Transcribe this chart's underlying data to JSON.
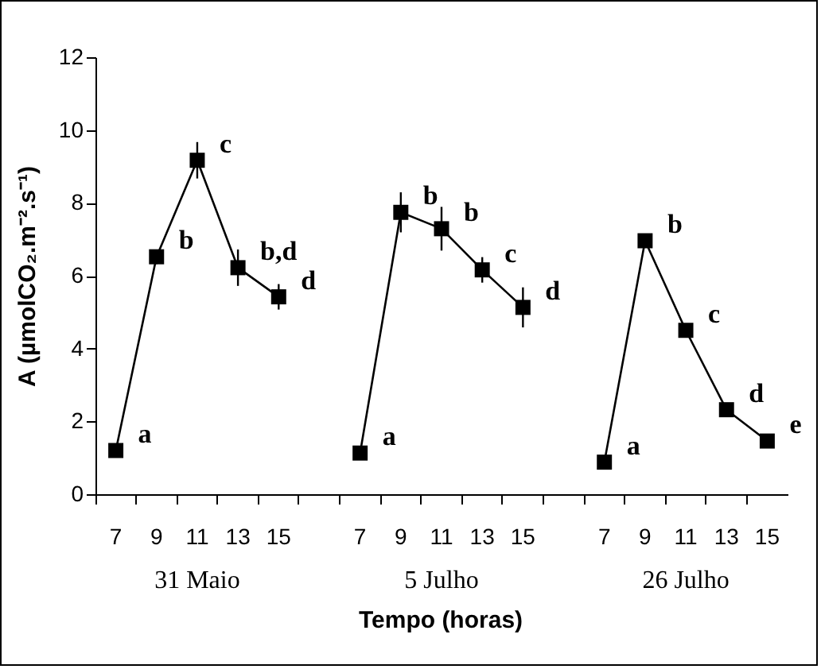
{
  "chart_data": {
    "type": "line",
    "ylabel": "A (µmolCO₂.m⁻².s⁻¹)",
    "xlabel": "Tempo (horas)",
    "categories": [
      "7",
      "9",
      "11",
      "13",
      "15",
      null,
      "7",
      "9",
      "11",
      "13",
      "15",
      null,
      "7",
      "9",
      "11",
      "13",
      "15"
    ],
    "series": [
      {
        "color": "#000000",
        "values": [
          1.2,
          6.52,
          9.17,
          6.22,
          5.42,
          null,
          1.13,
          7.74,
          7.29,
          6.16,
          5.13,
          null,
          0.88,
          6.96,
          4.5,
          2.32,
          1.46
        ],
        "errors": [
          null,
          0.2,
          0.5,
          0.5,
          0.35,
          null,
          null,
          0.55,
          0.6,
          0.35,
          0.55,
          null,
          null,
          null,
          null,
          null,
          null
        ],
        "value_labels": [
          "a",
          "b",
          "c",
          "b,d",
          "d",
          null,
          "a",
          "b",
          "b",
          "c",
          "d",
          null,
          "a",
          "b",
          "c",
          "d",
          "e"
        ]
      }
    ],
    "annotations": [
      "31 Maio",
      "5 Julho",
      "26 Julho"
    ],
    "ylim": [
      0,
      12
    ],
    "yticks": [
      0,
      2,
      4,
      6,
      8,
      10,
      12
    ],
    "marker": "square",
    "line_style": "solid",
    "grid": false
  }
}
